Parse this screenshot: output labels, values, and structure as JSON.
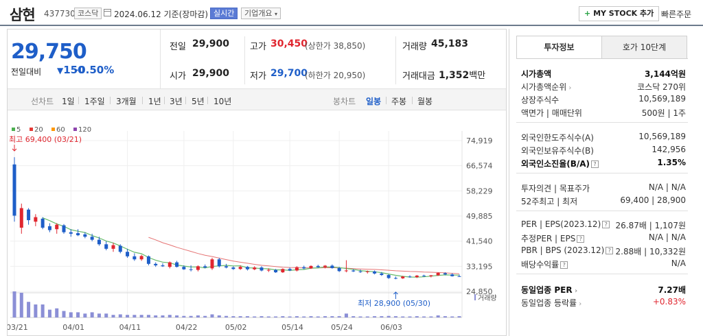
{
  "header": {
    "name": "삼현",
    "code": "437730",
    "market": "코스닥",
    "date": "2024.06.12",
    "date_suffix": "기준(장마감)",
    "realtime": "실시간",
    "company_info": "기업개요",
    "mystock": "MY STOCK 추가",
    "quick_order": "빠른주문"
  },
  "price": {
    "current": "29,750",
    "change_label": "전일대비",
    "change": "150",
    "change_pct": "-0.50%"
  },
  "quote": {
    "prev_label": "전일",
    "prev": "29,900",
    "high_label": "고가",
    "high": "30,450",
    "upper_limit": "(상한가 38,850)",
    "volume_label": "거래량",
    "volume": "45,183",
    "open_label": "시가",
    "open": "29,900",
    "low_label": "저가",
    "low": "29,700",
    "lower_limit": "(하한가 20,950)",
    "amount_label": "거래대금",
    "amount": "1,352",
    "amount_unit": "백만"
  },
  "period": {
    "line_label": "선차트",
    "items": [
      "1일",
      "1주일",
      "3개월",
      "1년",
      "3년",
      "5년",
      "10년"
    ],
    "candle_label": "봉차트",
    "candles": [
      "일봉",
      "주봉",
      "월봉"
    ],
    "active_candle": "일봉"
  },
  "legend": [
    "5",
    "20",
    "60",
    "120"
  ],
  "legend_colors": [
    "#4caf50",
    "#e53935",
    "#ff9800",
    "#8e44ad"
  ],
  "annotations": {
    "max": "최고 69,400 (03/21)",
    "min": "최저 28,900 (05/30)",
    "volume": "거래량"
  },
  "chart_data": {
    "type": "candlestick",
    "y_ticks": [
      "74,919",
      "66,574",
      "58,229",
      "49,885",
      "41,540",
      "33,195",
      "24,850"
    ],
    "y_range": [
      24850,
      74919
    ],
    "x_labels": [
      "03/21",
      "04/01",
      "04/11",
      "04/22",
      "05/02",
      "05/14",
      "05/24",
      "06/03"
    ],
    "up_color": "#e0262f",
    "down_color": "#1e5ec8",
    "candles": [
      {
        "o": 67000,
        "h": 69400,
        "l": 48000,
        "c": 50000
      },
      {
        "o": 46000,
        "h": 54000,
        "l": 44000,
        "c": 52500
      },
      {
        "o": 52000,
        "h": 52500,
        "l": 47000,
        "c": 48500
      },
      {
        "o": 48000,
        "h": 50500,
        "l": 46500,
        "c": 49500
      },
      {
        "o": 49000,
        "h": 49500,
        "l": 45500,
        "c": 46000
      },
      {
        "o": 46500,
        "h": 47500,
        "l": 44500,
        "c": 45200
      },
      {
        "o": 45500,
        "h": 47500,
        "l": 44000,
        "c": 47000
      },
      {
        "o": 46800,
        "h": 47200,
        "l": 44000,
        "c": 44500
      },
      {
        "o": 44500,
        "h": 45500,
        "l": 43000,
        "c": 44000
      },
      {
        "o": 44200,
        "h": 45500,
        "l": 43200,
        "c": 43500
      },
      {
        "o": 43800,
        "h": 44500,
        "l": 42500,
        "c": 43000
      },
      {
        "o": 43000,
        "h": 44000,
        "l": 41500,
        "c": 42000
      },
      {
        "o": 42000,
        "h": 43000,
        "l": 40000,
        "c": 40500
      },
      {
        "o": 40500,
        "h": 41500,
        "l": 38500,
        "c": 39000
      },
      {
        "o": 39000,
        "h": 41000,
        "l": 38000,
        "c": 40200
      },
      {
        "o": 40000,
        "h": 40500,
        "l": 37500,
        "c": 38000
      },
      {
        "o": 38000,
        "h": 39000,
        "l": 36000,
        "c": 36500
      },
      {
        "o": 36500,
        "h": 37500,
        "l": 35000,
        "c": 35500
      },
      {
        "o": 35500,
        "h": 37000,
        "l": 35000,
        "c": 36600
      },
      {
        "o": 36500,
        "h": 36800,
        "l": 33500,
        "c": 34000
      },
      {
        "o": 34000,
        "h": 34500,
        "l": 33000,
        "c": 33500
      },
      {
        "o": 33500,
        "h": 34200,
        "l": 33000,
        "c": 33200
      },
      {
        "o": 33000,
        "h": 34800,
        "l": 32500,
        "c": 34500
      },
      {
        "o": 34500,
        "h": 35000,
        "l": 32800,
        "c": 33000
      },
      {
        "o": 33000,
        "h": 33500,
        "l": 32000,
        "c": 32200
      },
      {
        "o": 32200,
        "h": 33500,
        "l": 31500,
        "c": 32000
      },
      {
        "o": 32000,
        "h": 33500,
        "l": 31500,
        "c": 33200
      },
      {
        "o": 33200,
        "h": 33800,
        "l": 32500,
        "c": 32800
      },
      {
        "o": 32500,
        "h": 36000,
        "l": 32000,
        "c": 35500
      },
      {
        "o": 35500,
        "h": 36000,
        "l": 32800,
        "c": 33200
      },
      {
        "o": 33200,
        "h": 34000,
        "l": 32500,
        "c": 32800
      },
      {
        "o": 32800,
        "h": 33200,
        "l": 32000,
        "c": 32300
      },
      {
        "o": 32300,
        "h": 33500,
        "l": 32000,
        "c": 33000
      },
      {
        "o": 33000,
        "h": 33300,
        "l": 31800,
        "c": 32200
      },
      {
        "o": 32200,
        "h": 33200,
        "l": 31900,
        "c": 32800
      },
      {
        "o": 32800,
        "h": 33200,
        "l": 31500,
        "c": 31800
      },
      {
        "o": 31800,
        "h": 32500,
        "l": 31300,
        "c": 32000
      },
      {
        "o": 32000,
        "h": 32300,
        "l": 31000,
        "c": 31200
      },
      {
        "o": 31200,
        "h": 32500,
        "l": 31000,
        "c": 32300
      },
      {
        "o": 32300,
        "h": 32800,
        "l": 31600,
        "c": 31800
      },
      {
        "o": 31800,
        "h": 33200,
        "l": 31500,
        "c": 32900
      },
      {
        "o": 32900,
        "h": 33400,
        "l": 32200,
        "c": 32500
      },
      {
        "o": 32500,
        "h": 33500,
        "l": 32300,
        "c": 33300
      },
      {
        "o": 33300,
        "h": 33700,
        "l": 32700,
        "c": 32900
      },
      {
        "o": 32900,
        "h": 33600,
        "l": 32500,
        "c": 33400
      },
      {
        "o": 33400,
        "h": 33800,
        "l": 32400,
        "c": 32600
      },
      {
        "o": 32600,
        "h": 33000,
        "l": 31300,
        "c": 31600
      },
      {
        "o": 31600,
        "h": 35200,
        "l": 31200,
        "c": 31800
      },
      {
        "o": 31800,
        "h": 32300,
        "l": 31300,
        "c": 31500
      },
      {
        "o": 31500,
        "h": 32100,
        "l": 31000,
        "c": 31300
      },
      {
        "o": 31300,
        "h": 31800,
        "l": 30800,
        "c": 31500
      },
      {
        "o": 31500,
        "h": 31800,
        "l": 30500,
        "c": 30800
      },
      {
        "o": 30800,
        "h": 31300,
        "l": 30000,
        "c": 30300
      },
      {
        "o": 30300,
        "h": 30600,
        "l": 29000,
        "c": 29300
      },
      {
        "o": 29300,
        "h": 29800,
        "l": 28900,
        "c": 29100
      },
      {
        "o": 29200,
        "h": 30000,
        "l": 29000,
        "c": 29800
      },
      {
        "o": 29800,
        "h": 30200,
        "l": 29400,
        "c": 29600
      },
      {
        "o": 29600,
        "h": 30300,
        "l": 29300,
        "c": 30100
      },
      {
        "o": 30100,
        "h": 30400,
        "l": 29700,
        "c": 29900
      },
      {
        "o": 29900,
        "h": 30300,
        "l": 29500,
        "c": 30200
      },
      {
        "o": 30200,
        "h": 31200,
        "l": 30000,
        "c": 31000
      },
      {
        "o": 30900,
        "h": 31200,
        "l": 30200,
        "c": 30500
      },
      {
        "o": 30500,
        "h": 30900,
        "l": 29800,
        "c": 29900
      },
      {
        "o": 29900,
        "h": 30450,
        "l": 29700,
        "c": 29750
      }
    ],
    "volume_relative": [
      1.0,
      0.95,
      0.6,
      0.5,
      0.5,
      0.3,
      0.35,
      0.25,
      0.2,
      0.2,
      0.15,
      0.2,
      0.15,
      0.15,
      0.1,
      0.12,
      0.1,
      0.1,
      0.1,
      0.1,
      0.08,
      0.08,
      0.1,
      0.08,
      0.06,
      0.06,
      0.08,
      0.06,
      0.12,
      0.08,
      0.06,
      0.05,
      0.05,
      0.05,
      0.04,
      0.05,
      0.04,
      0.04,
      0.05,
      0.04,
      0.05,
      0.04,
      0.05,
      0.04,
      0.05,
      0.05,
      0.05,
      0.15,
      0.05,
      0.04,
      0.04,
      0.05,
      0.05,
      0.06,
      0.05,
      0.04,
      0.04,
      0.05,
      0.04,
      0.04,
      0.08,
      0.05,
      0.04,
      0.05
    ]
  },
  "tabs": {
    "invest": "투자정보",
    "orderbook": "호가 10단계"
  },
  "info": {
    "g1": [
      {
        "l": "시가총액",
        "r": "3,144억원",
        "bold": true
      },
      {
        "l": "시가총액순위",
        "r": "코스닥 270위",
        "chev": true
      },
      {
        "l": "상장주식수",
        "r": "10,569,189"
      },
      {
        "l": "액면가 | 매매단위",
        "r": "500원 | 1주"
      }
    ],
    "g2": [
      {
        "l": "외국인한도주식수(A)",
        "r": "10,569,189"
      },
      {
        "l": "외국인보유주식수(B)",
        "r": "142,956"
      },
      {
        "l": "외국인소진율(B/A)",
        "r": "1.35%",
        "bold": true,
        "q": true
      }
    ],
    "g3": [
      {
        "l": "투자의견 | 목표주가",
        "r": "N/A | N/A"
      },
      {
        "l": "52주최고 | 최저",
        "r": "69,400 | 28,900"
      }
    ],
    "g4": [
      {
        "l": "PER | EPS(2023.12)",
        "r": "26.87배 | 1,107원",
        "q": true
      },
      {
        "l": "추정PER | EPS",
        "r": "N/A | N/A",
        "q": true
      },
      {
        "l": "PBR | BPS (2023.12)",
        "r": "2.88배 | 10,332원",
        "q": true
      },
      {
        "l": "배당수익률",
        "r": "N/A",
        "q": true
      }
    ],
    "g5": [
      {
        "l": "동일업종 PER",
        "r": "7.27배",
        "bold": true,
        "chev": true
      },
      {
        "l": "동일업종 등락률",
        "r": "+0.83%",
        "red": true,
        "chev": true
      }
    ]
  }
}
